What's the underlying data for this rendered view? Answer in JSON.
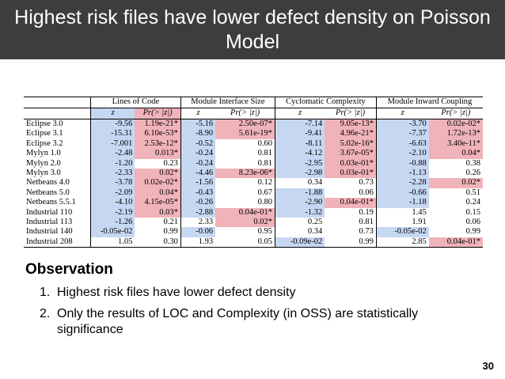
{
  "title": "Highest risk files have lower defect density on Poisson Model",
  "table": {
    "groups": [
      "Lines of Code",
      "Module Interface Size",
      "Cyclomatic Complexity",
      "Module Inward Coupling"
    ],
    "subheaders": [
      "z",
      "Pr(> |z|)",
      "z",
      "Pr(> |z|)",
      "z",
      "Pr(> |z|)",
      "z",
      "Pr(> |z|)"
    ],
    "rows": [
      {
        "name": "Eclipse 3.0",
        "cells": [
          [
            "-9.56",
            "b"
          ],
          [
            "1.19e-21*",
            "r"
          ],
          [
            "-5.16",
            "b"
          ],
          [
            "2.50e-07*",
            "r"
          ],
          [
            "-7.14",
            "b"
          ],
          [
            "9.05e-13*",
            "r"
          ],
          [
            "-3.70",
            "b"
          ],
          [
            "0.02e-02*",
            "r"
          ]
        ]
      },
      {
        "name": "Eclipse 3.1",
        "cells": [
          [
            "-15.31",
            "b"
          ],
          [
            "6.10e-53*",
            "r"
          ],
          [
            "-8.90",
            "b"
          ],
          [
            "5.61e-19*",
            "r"
          ],
          [
            "-9.41",
            "b"
          ],
          [
            "4.96e-21*",
            "r"
          ],
          [
            "-7.37",
            "b"
          ],
          [
            "1.72e-13*",
            "r"
          ]
        ]
      },
      {
        "name": "Eclipse 3.2",
        "cells": [
          [
            "-7.001",
            "b"
          ],
          [
            "2.53e-12*",
            "r"
          ],
          [
            "-0.52",
            "b"
          ],
          [
            "0.60",
            ""
          ],
          [
            "-8.11",
            "b"
          ],
          [
            "5.02e-16*",
            "r"
          ],
          [
            "-6.63",
            "b"
          ],
          [
            "3.40e-11*",
            "r"
          ]
        ]
      },
      {
        "name": "Mylyn 1.0",
        "cells": [
          [
            "-2.48",
            "b"
          ],
          [
            "0.013*",
            "r"
          ],
          [
            "-0.24",
            "b"
          ],
          [
            "0.81",
            ""
          ],
          [
            "-4.12",
            "b"
          ],
          [
            "3.67e-05*",
            "r"
          ],
          [
            "-2.10",
            "b"
          ],
          [
            "0.04*",
            "r"
          ]
        ]
      },
      {
        "name": "Mylyn 2.0",
        "cells": [
          [
            "-1.20",
            "b"
          ],
          [
            "0.23",
            ""
          ],
          [
            "-0.24",
            "b"
          ],
          [
            "0.81",
            ""
          ],
          [
            "-2.95",
            "b"
          ],
          [
            "0.03e-01*",
            "r"
          ],
          [
            "-0.88",
            "b"
          ],
          [
            "0.38",
            ""
          ]
        ]
      },
      {
        "name": "Mylyn 3.0",
        "cells": [
          [
            "-2.33",
            "b"
          ],
          [
            "0.02*",
            "r"
          ],
          [
            "-4.46",
            "b"
          ],
          [
            "8.23e-06*",
            "r"
          ],
          [
            "-2.98",
            "b"
          ],
          [
            "0.03e-01*",
            "r"
          ],
          [
            "-1.13",
            "b"
          ],
          [
            "0.26",
            ""
          ]
        ]
      },
      {
        "name": "Netbeans 4.0",
        "cells": [
          [
            "-3.78",
            "b"
          ],
          [
            "0.02e-02*",
            "r"
          ],
          [
            "-1.56",
            "b"
          ],
          [
            "0.12",
            ""
          ],
          [
            "0.34",
            ""
          ],
          [
            "0.73",
            ""
          ],
          [
            "-2.28",
            "b"
          ],
          [
            "0.02*",
            "r"
          ]
        ]
      },
      {
        "name": "Netbeans 5.0",
        "cells": [
          [
            "-2.09",
            "b"
          ],
          [
            "0.04*",
            "r"
          ],
          [
            "-0.43",
            "b"
          ],
          [
            "0.67",
            ""
          ],
          [
            "-1.88",
            "b"
          ],
          [
            "0.06",
            ""
          ],
          [
            "-0.66",
            "b"
          ],
          [
            "0.51",
            ""
          ]
        ]
      },
      {
        "name": "Netbeans 5.5.1",
        "cells": [
          [
            "-4.10",
            "b"
          ],
          [
            "4.15e-05*",
            "r"
          ],
          [
            "-0.26",
            "b"
          ],
          [
            "0.80",
            ""
          ],
          [
            "-2.90",
            "b"
          ],
          [
            "0.04e-01*",
            "r"
          ],
          [
            "-1.18",
            "b"
          ],
          [
            "0.24",
            ""
          ]
        ]
      },
      {
        "name": "Industrial 110",
        "cells": [
          [
            "-2.19",
            "b"
          ],
          [
            "0.03*",
            "r"
          ],
          [
            "-2.88",
            "b"
          ],
          [
            "0.04e-01*",
            "r"
          ],
          [
            "-1.32",
            "b"
          ],
          [
            "0.19",
            ""
          ],
          [
            "1.45",
            ""
          ],
          [
            "0.15",
            ""
          ]
        ]
      },
      {
        "name": "Industrial 113",
        "cells": [
          [
            "-1.26",
            "b"
          ],
          [
            "0.21",
            ""
          ],
          [
            "2.33",
            ""
          ],
          [
            "0.02*",
            "r"
          ],
          [
            "0.25",
            ""
          ],
          [
            "0.81",
            ""
          ],
          [
            "1.91",
            ""
          ],
          [
            "0.06",
            ""
          ]
        ]
      },
      {
        "name": "Industrial 140",
        "cells": [
          [
            "-0.05e-02",
            "b"
          ],
          [
            "0.99",
            ""
          ],
          [
            "-0.06",
            "b"
          ],
          [
            "0.95",
            ""
          ],
          [
            "0.34",
            ""
          ],
          [
            "0.73",
            ""
          ],
          [
            "-0.05e-02",
            "b"
          ],
          [
            "0.99",
            ""
          ]
        ]
      },
      {
        "name": "Industrial 208",
        "cells": [
          [
            "1.05",
            ""
          ],
          [
            "0.30",
            ""
          ],
          [
            "1.93",
            ""
          ],
          [
            "0.05",
            ""
          ],
          [
            "-0.09e-02",
            "b"
          ],
          [
            "0.99",
            ""
          ],
          [
            "2.85",
            ""
          ],
          [
            "0.04e-01*",
            "r"
          ]
        ]
      }
    ]
  },
  "observation": {
    "title": "Observation",
    "items": [
      {
        "num": "1.",
        "text": "Highest risk files have lower defect density"
      },
      {
        "num": "2.",
        "text": "Only the results of LOC and Complexity (in OSS) are statistically significance"
      }
    ]
  },
  "page_number": "30",
  "colors": {
    "title_bg": "#3d3d3d",
    "negative_highlight": "#c6d7f2",
    "significant_highlight": "#f0b3b9"
  }
}
